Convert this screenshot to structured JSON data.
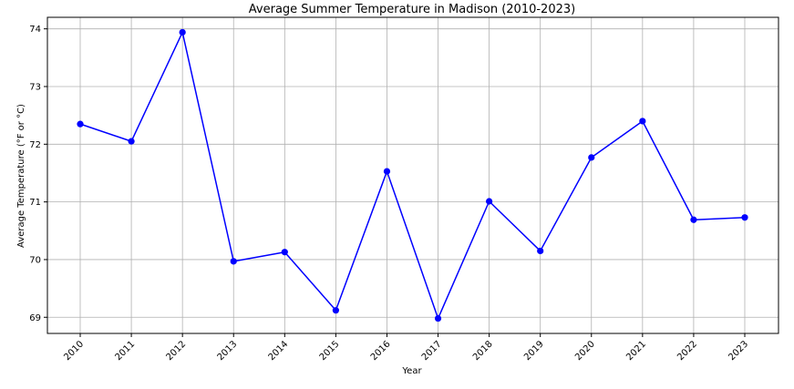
{
  "chart_data": {
    "type": "line",
    "title": "Average Summer Temperature in Madison (2010-2023)",
    "xlabel": "Year",
    "ylabel": "Average Temperature (°F or °C)",
    "x": [
      "2010",
      "2011",
      "2012",
      "2013",
      "2014",
      "2015",
      "2016",
      "2017",
      "2018",
      "2019",
      "2020",
      "2021",
      "2022",
      "2023"
    ],
    "series": [
      {
        "values": [
          72.35,
          72.05,
          73.94,
          69.97,
          70.13,
          69.12,
          71.53,
          68.98,
          71.01,
          70.15,
          71.77,
          72.4,
          70.69,
          70.73
        ],
        "color": "#0000ff",
        "marker": "circle"
      }
    ],
    "yticks": [
      69,
      70,
      71,
      72,
      73,
      74
    ],
    "ylim": [
      68.72,
      74.2
    ],
    "grid": true,
    "legend": "none"
  }
}
